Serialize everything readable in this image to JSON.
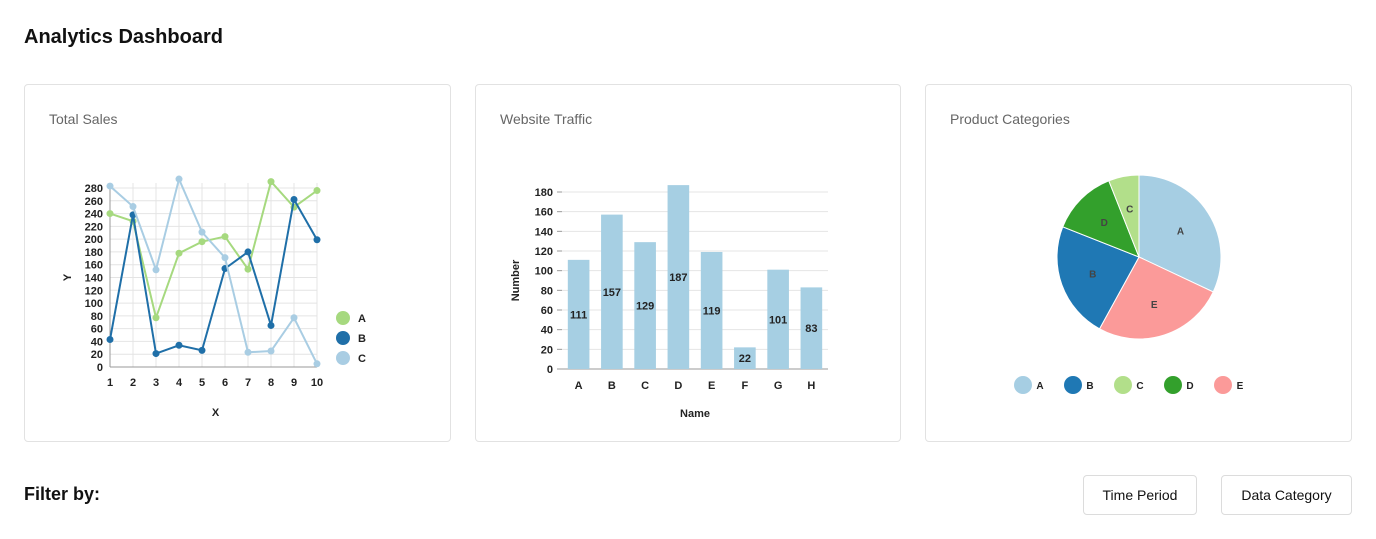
{
  "header": {
    "title": "Analytics Dashboard"
  },
  "cards": {
    "sales": {
      "title": "Total Sales"
    },
    "traffic": {
      "title": "Website Traffic"
    },
    "categories": {
      "title": "Product Categories"
    }
  },
  "filter": {
    "label": "Filter by:",
    "buttons": {
      "time_period": "Time Period",
      "data_category": "Data Category"
    }
  },
  "chart_data": [
    {
      "type": "line",
      "title": "Total Sales",
      "xlabel": "X",
      "ylabel": "Y",
      "x": [
        1,
        2,
        3,
        4,
        5,
        6,
        7,
        8,
        9,
        10
      ],
      "ylim": [
        0,
        280
      ],
      "yticks": [
        0,
        20,
        40,
        60,
        80,
        100,
        120,
        140,
        160,
        180,
        200,
        220,
        240,
        260,
        280
      ],
      "grid": true,
      "legend": "right",
      "series": [
        {
          "name": "A",
          "color": "#a6d97f",
          "values": [
            240,
            228,
            77,
            178,
            196,
            204,
            153,
            290,
            250,
            276
          ]
        },
        {
          "name": "B",
          "color": "#1f6fa8",
          "values": [
            43,
            238,
            21,
            34,
            26,
            154,
            180,
            65,
            262,
            199
          ]
        },
        {
          "name": "C",
          "color": "#a9cde3",
          "values": [
            283,
            251,
            152,
            294,
            211,
            171,
            23,
            25,
            77,
            5
          ]
        }
      ]
    },
    {
      "type": "bar",
      "title": "Website Traffic",
      "xlabel": "Name",
      "ylabel": "Number",
      "categories": [
        "A",
        "B",
        "C",
        "D",
        "E",
        "F",
        "G",
        "H"
      ],
      "values": [
        111,
        157,
        129,
        187,
        119,
        22,
        101,
        83
      ],
      "ylim": [
        0,
        180
      ],
      "yticks": [
        0,
        20,
        40,
        60,
        80,
        100,
        120,
        140,
        160,
        180
      ],
      "grid": true,
      "color": "#a6cfe3"
    },
    {
      "type": "pie",
      "title": "Product Categories",
      "legend": "bottom",
      "slices": [
        {
          "label": "A",
          "value": 32,
          "color": "#a6cee3"
        },
        {
          "label": "E",
          "value": 26,
          "color": "#fb9a99"
        },
        {
          "label": "B",
          "value": 23,
          "color": "#1f78b4"
        },
        {
          "label": "D",
          "value": 13,
          "color": "#33a02c"
        },
        {
          "label": "C",
          "value": 6,
          "color": "#b2df8a"
        }
      ],
      "legend_order": [
        "A",
        "B",
        "C",
        "D",
        "E"
      ]
    }
  ]
}
